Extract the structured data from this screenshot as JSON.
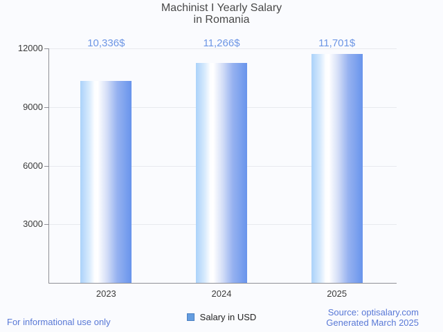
{
  "title": {
    "line1": "Machinist I Yearly Salary",
    "line2": "in Romania"
  },
  "chart_data": {
    "type": "bar",
    "title": "Machinist I Yearly Salary in Romania",
    "categories": [
      "2023",
      "2024",
      "2025"
    ],
    "values": [
      10336,
      11266,
      11701
    ],
    "value_labels": [
      "10,336$",
      "11,266$",
      "11,701$"
    ],
    "series": [
      {
        "name": "Salary in USD",
        "values": [
          10336,
          11266,
          11701
        ]
      }
    ],
    "xlabel": "",
    "ylabel": "",
    "ylim": [
      0,
      12000
    ],
    "yticks": [
      3000,
      6000,
      9000,
      12000
    ],
    "grid": true,
    "legend_position": "bottom"
  },
  "legend": {
    "label": "Salary in USD"
  },
  "footer": {
    "left": "For informational use only",
    "source": "Source: optisalary.com",
    "generated": "Generated March 2025"
  },
  "colors": {
    "bar_base": "#6894ec",
    "bar_highlight": "#ffffff",
    "bar_light_edge": "#aad2fa",
    "value_label_blue": "#6d96e5",
    "footer_blue": "#5878d6",
    "legend_fill": "#649de0",
    "legend_border": "#4a7fc1",
    "title_gray": "#484848",
    "axis_gray": "#8f8f96",
    "grid_gray": "#e7e9ee",
    "background": "#fafbfe"
  }
}
